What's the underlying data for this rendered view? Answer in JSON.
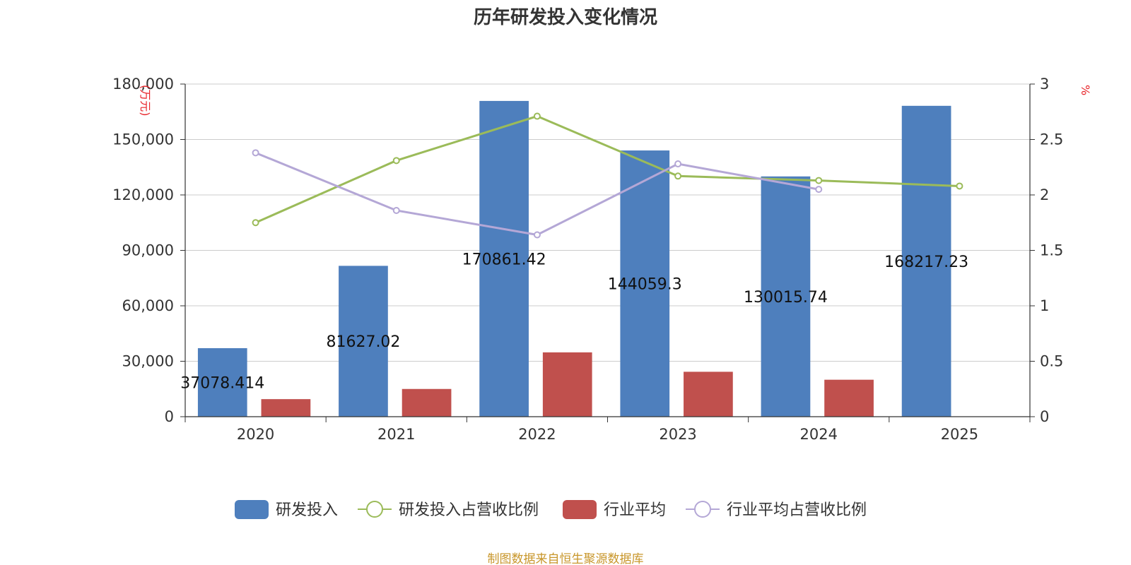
{
  "title": "历年研发投入变化情况",
  "source": "制图数据来自恒生聚源数据库",
  "colors": {
    "rd_bar": "#4e7fbd",
    "industry_bar": "#c0504d",
    "rd_ratio_line": "#9bbb59",
    "industry_ratio_line": "#b4a7d6",
    "grid": "#cccccc",
    "unit_text": "#e8262b",
    "source_text": "#c8962a"
  },
  "chart_data": {
    "type": "bar",
    "title": "历年研发投入变化情况",
    "categories": [
      "2020",
      "2021",
      "2022",
      "2023",
      "2024",
      "2025"
    ],
    "y_left": {
      "label": "万元",
      "range": [
        0,
        180000
      ],
      "ticks": [
        "0",
        "30,000",
        "60,000",
        "90,000",
        "120,000",
        "150,000",
        "180,000"
      ]
    },
    "y_right": {
      "label": "%",
      "range": [
        0,
        3
      ],
      "ticks": [
        "0",
        "0.5",
        "1",
        "1.5",
        "2",
        "2.5",
        "3"
      ]
    },
    "grid": true,
    "legend_position": "bottom-center",
    "series": [
      {
        "name": "研发投入",
        "type": "bar",
        "axis": "left",
        "values": [
          37078.414,
          81627.02,
          170861.42,
          144059.3,
          130015.74,
          168217.23
        ],
        "labels": [
          "37078.414",
          "81627.02",
          "170861.42",
          "144059.3",
          "130015.74",
          "168217.23"
        ]
      },
      {
        "name": "研发投入占营收比例",
        "type": "line",
        "axis": "right",
        "values": [
          1.75,
          2.31,
          2.71,
          2.17,
          2.13,
          2.08
        ]
      },
      {
        "name": "行业平均",
        "type": "bar",
        "axis": "left",
        "values": [
          9500,
          15000,
          34800,
          24300,
          20000,
          null
        ]
      },
      {
        "name": "行业平均占营收比例",
        "type": "line",
        "axis": "right",
        "values": [
          2.38,
          1.86,
          1.64,
          2.28,
          2.05,
          null
        ]
      }
    ]
  }
}
